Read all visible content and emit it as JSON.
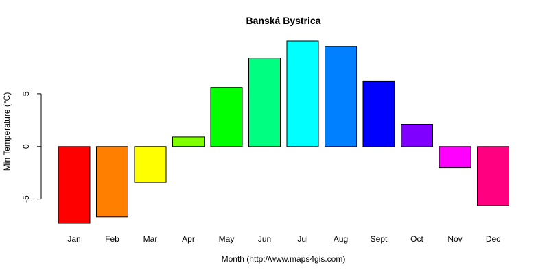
{
  "chart_data": {
    "type": "bar",
    "title": "Banská Bystrica",
    "xlabel": "Month (http://www.maps4gis.com)",
    "ylabel": "Min Temperature (°C)",
    "categories": [
      "Jan",
      "Feb",
      "Mar",
      "Apr",
      "May",
      "Jun",
      "Jul",
      "Aug",
      "Sept",
      "Oct",
      "Nov",
      "Dec"
    ],
    "values": [
      -7.3,
      -6.7,
      -3.4,
      0.9,
      5.6,
      8.4,
      10.0,
      9.5,
      6.2,
      2.1,
      -2.0,
      -5.6
    ],
    "colors": [
      "#FF0000",
      "#FF8000",
      "#FFFF00",
      "#80FF00",
      "#00FF00",
      "#00FF80",
      "#00FFFF",
      "#0080FF",
      "#0000FF",
      "#8000FF",
      "#FF00FF",
      "#FF0080"
    ],
    "ylim": [
      -7.3,
      10.0
    ],
    "yticks": [
      -5,
      0,
      5
    ],
    "ytick_labels": [
      "-5",
      "0",
      "5"
    ],
    "grid": false,
    "legend": "none"
  }
}
